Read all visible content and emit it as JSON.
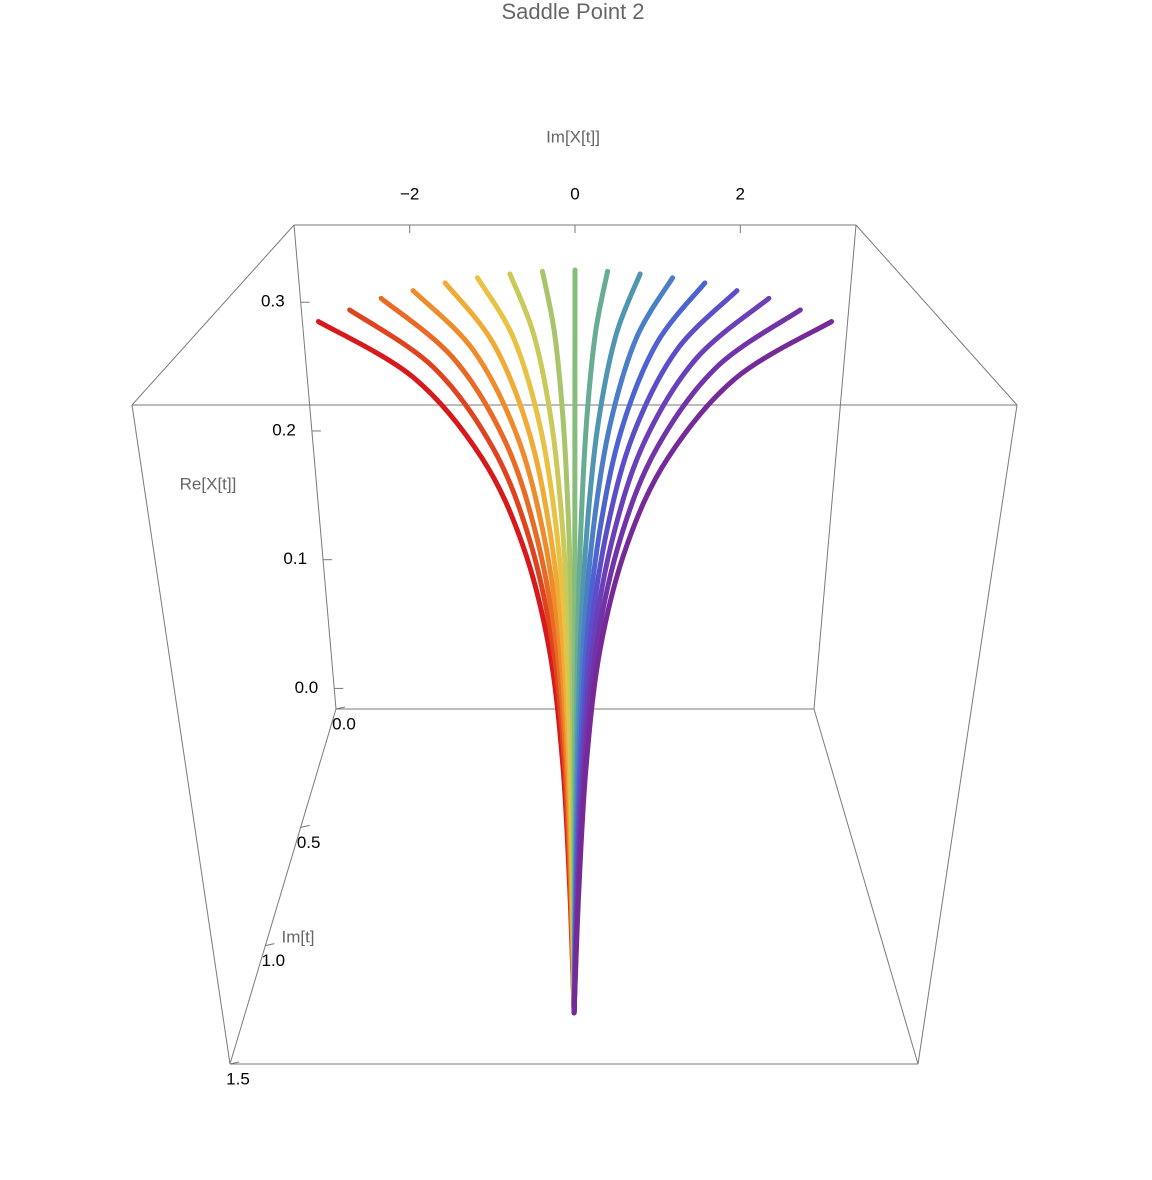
{
  "chart_data": {
    "type": "line3d",
    "title": "Saddle Point 2",
    "x_label": "Im[X[t]]",
    "y_label": "Re[X[t]]",
    "z_label": "Im[t]",
    "xlim": [
      -3.4,
      3.4
    ],
    "ylim": [
      -0.016,
      0.36
    ],
    "zlim": [
      0,
      1.5
    ],
    "xticks": [
      {
        "value": -2,
        "label": "−2"
      },
      0,
      2
    ],
    "yticks": [
      {
        "value": 0,
        "label": "0.0"
      },
      0.1,
      0.2,
      0.3
    ],
    "zticks": [
      {
        "value": 0,
        "label": "0.0"
      },
      0.5,
      {
        "value": 1,
        "label": "1.0"
      },
      1.5
    ],
    "z": [
      0,
      0.08,
      0.2,
      0.35,
      0.55,
      0.8,
      1.1,
      1.4
    ],
    "series": [
      {
        "color": "#d7191c",
        "x": [
          -3.2,
          -1.984,
          -1.12,
          -0.608,
          -0.288,
          -0.128,
          -0.048,
          0
        ],
        "y": [
          0.285,
          0.251,
          0.205,
          0.16,
          0.114,
          0.071,
          0.034,
          0
        ]
      },
      {
        "color": "#e0431f",
        "x": [
          -2.8,
          -1.736,
          -0.98,
          -0.532,
          -0.252,
          -0.112,
          -0.042,
          0
        ],
        "y": [
          0.294,
          0.259,
          0.212,
          0.165,
          0.118,
          0.074,
          0.035,
          0
        ]
      },
      {
        "color": "#e86a25",
        "x": [
          -2.4,
          -1.488,
          -0.84,
          -0.456,
          -0.216,
          -0.096,
          -0.036,
          0
        ],
        "y": [
          0.303,
          0.266,
          0.218,
          0.169,
          0.121,
          0.076,
          0.036,
          0
        ]
      },
      {
        "color": "#ee8c2c",
        "x": [
          -2,
          -1.24,
          -0.7,
          -0.38,
          -0.18,
          -0.08,
          -0.03,
          0
        ],
        "y": [
          0.309,
          0.272,
          0.223,
          0.173,
          0.124,
          0.077,
          0.037,
          0
        ]
      },
      {
        "color": "#f0ab36",
        "x": [
          -1.6,
          -0.992,
          -0.56,
          -0.304,
          -0.144,
          -0.064,
          -0.024,
          0
        ],
        "y": [
          0.315,
          0.277,
          0.227,
          0.176,
          0.126,
          0.079,
          0.038,
          0
        ]
      },
      {
        "color": "#e9c244",
        "x": [
          -1.2,
          -0.744,
          -0.42,
          -0.228,
          -0.108,
          -0.048,
          -0.018,
          0
        ],
        "y": [
          0.319,
          0.281,
          0.23,
          0.179,
          0.128,
          0.08,
          0.038,
          0
        ]
      },
      {
        "color": "#cbc95a",
        "x": [
          -0.8,
          -0.496,
          -0.28,
          -0.152,
          -0.072,
          -0.032,
          -0.012,
          0
        ],
        "y": [
          0.322,
          0.283,
          0.232,
          0.18,
          0.129,
          0.081,
          0.039,
          0
        ]
      },
      {
        "color": "#a8c56c",
        "x": [
          -0.4,
          -0.248,
          -0.14,
          -0.076,
          -0.036,
          -0.016,
          -0.006,
          0
        ],
        "y": [
          0.324,
          0.285,
          0.233,
          0.181,
          0.13,
          0.081,
          0.039,
          0
        ]
      },
      {
        "color": "#86bc7c",
        "x": [
          0,
          0,
          0,
          0,
          0,
          0,
          0,
          0
        ],
        "y": [
          0.325,
          0.286,
          0.234,
          0.182,
          0.13,
          0.081,
          0.039,
          0
        ]
      },
      {
        "color": "#67ac93",
        "x": [
          0.4,
          0.248,
          0.14,
          0.076,
          0.036,
          0.016,
          0.006,
          0
        ],
        "y": [
          0.324,
          0.285,
          0.233,
          0.181,
          0.13,
          0.081,
          0.039,
          0
        ]
      },
      {
        "color": "#5196b0",
        "x": [
          0.8,
          0.496,
          0.28,
          0.152,
          0.072,
          0.032,
          0.012,
          0
        ],
        "y": [
          0.322,
          0.283,
          0.232,
          0.18,
          0.129,
          0.081,
          0.039,
          0
        ]
      },
      {
        "color": "#4b7ec6",
        "x": [
          1.2,
          0.744,
          0.42,
          0.228,
          0.108,
          0.048,
          0.018,
          0
        ],
        "y": [
          0.319,
          0.281,
          0.23,
          0.179,
          0.128,
          0.08,
          0.038,
          0
        ]
      },
      {
        "color": "#4d64d0",
        "x": [
          1.6,
          0.992,
          0.56,
          0.304,
          0.144,
          0.064,
          0.024,
          0
        ],
        "y": [
          0.315,
          0.277,
          0.227,
          0.176,
          0.126,
          0.079,
          0.038,
          0
        ]
      },
      {
        "color": "#5b4ec8",
        "x": [
          2,
          1.24,
          0.7,
          0.38,
          0.18,
          0.08,
          0.03,
          0
        ],
        "y": [
          0.309,
          0.272,
          0.223,
          0.173,
          0.124,
          0.077,
          0.037,
          0
        ]
      },
      {
        "color": "#6a3fb8",
        "x": [
          2.4,
          1.488,
          0.84,
          0.456,
          0.216,
          0.096,
          0.036,
          0
        ],
        "y": [
          0.303,
          0.266,
          0.218,
          0.169,
          0.121,
          0.076,
          0.036,
          0
        ]
      },
      {
        "color": "#7233a8",
        "x": [
          2.8,
          1.736,
          0.98,
          0.532,
          0.252,
          0.112,
          0.042,
          0
        ],
        "y": [
          0.294,
          0.259,
          0.212,
          0.165,
          0.118,
          0.074,
          0.035,
          0
        ]
      },
      {
        "color": "#762a98",
        "x": [
          3.2,
          1.984,
          1.12,
          0.608,
          0.288,
          0.128,
          0.048,
          0
        ],
        "y": [
          0.285,
          0.251,
          0.205,
          0.16,
          0.114,
          0.071,
          0.034,
          0
        ]
      }
    ]
  }
}
